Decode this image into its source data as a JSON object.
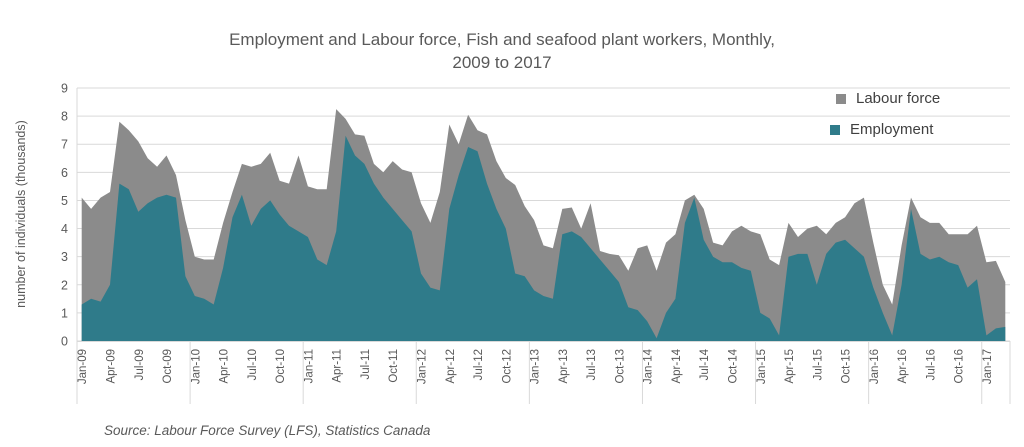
{
  "title": {
    "line1": "Employment and Labour force, Fish and seafood plant workers, Monthly,",
    "line2": "2009 to 2017"
  },
  "legend": {
    "items": [
      {
        "label": "Labour force",
        "color": "#8b8b8b"
      },
      {
        "label": "Employment",
        "color": "#2f7b8a"
      }
    ]
  },
  "y_axis": {
    "title": "number of individuals (thousands)",
    "ticks": [
      0,
      1,
      2,
      3,
      4,
      5,
      6,
      7,
      8,
      9
    ]
  },
  "source": "Source: Labour Force Survey (LFS), Statistics Canada",
  "colors": {
    "grid": "#d9d9d9",
    "axis_text": "#595959",
    "labour_force": "#8b8b8b",
    "employment": "#2f7b8a"
  },
  "chart_data": {
    "type": "area",
    "title": "Employment and Labour force, Fish and seafood plant workers, Monthly, 2009 to 2017",
    "ylabel": "number of individuals (thousands)",
    "ylim": [
      0,
      9
    ],
    "grid": true,
    "legend_position": "top-right",
    "x_tick_every": 3,
    "x": [
      "Jan-09",
      "Feb-09",
      "Mar-09",
      "Apr-09",
      "May-09",
      "Jun-09",
      "Jul-09",
      "Aug-09",
      "Sep-09",
      "Oct-09",
      "Nov-09",
      "Dec-09",
      "Jan-10",
      "Feb-10",
      "Mar-10",
      "Apr-10",
      "May-10",
      "Jun-10",
      "Jul-10",
      "Aug-10",
      "Sep-10",
      "Oct-10",
      "Nov-10",
      "Dec-10",
      "Jan-11",
      "Feb-11",
      "Mar-11",
      "Apr-11",
      "May-11",
      "Jun-11",
      "Jul-11",
      "Aug-11",
      "Sep-11",
      "Oct-11",
      "Nov-11",
      "Dec-11",
      "Jan-12",
      "Feb-12",
      "Mar-12",
      "Apr-12",
      "May-12",
      "Jun-12",
      "Jul-12",
      "Aug-12",
      "Sep-12",
      "Oct-12",
      "Nov-12",
      "Dec-12",
      "Jan-13",
      "Feb-13",
      "Mar-13",
      "Apr-13",
      "May-13",
      "Jun-13",
      "Jul-13",
      "Aug-13",
      "Sep-13",
      "Oct-13",
      "Nov-13",
      "Dec-13",
      "Jan-14",
      "Feb-14",
      "Mar-14",
      "Apr-14",
      "May-14",
      "Jun-14",
      "Jul-14",
      "Aug-14",
      "Sep-14",
      "Oct-14",
      "Nov-14",
      "Dec-14",
      "Jan-15",
      "Feb-15",
      "Mar-15",
      "Apr-15",
      "May-15",
      "Jun-15",
      "Jul-15",
      "Aug-15",
      "Sep-15",
      "Oct-15",
      "Nov-15",
      "Dec-15",
      "Jan-16",
      "Feb-16",
      "Mar-16",
      "Apr-16",
      "May-16",
      "Jun-16",
      "Jul-16",
      "Aug-16",
      "Sep-16",
      "Oct-16",
      "Nov-16",
      "Dec-16",
      "Jan-17",
      "Feb-17",
      "Mar-17"
    ],
    "series": [
      {
        "name": "Labour force",
        "color": "#8b8b8b",
        "values": [
          5.1,
          4.7,
          5.1,
          5.3,
          7.8,
          7.5,
          7.1,
          6.5,
          6.2,
          6.6,
          5.9,
          4.3,
          3.0,
          2.9,
          2.9,
          4.2,
          5.3,
          6.3,
          6.2,
          6.3,
          6.7,
          5.7,
          5.6,
          6.6,
          5.5,
          5.4,
          5.4,
          8.25,
          7.9,
          7.35,
          7.3,
          6.3,
          6.0,
          6.4,
          6.1,
          6.0,
          4.9,
          4.2,
          5.3,
          7.7,
          7.0,
          8.05,
          7.5,
          7.35,
          6.4,
          5.8,
          5.55,
          4.8,
          4.3,
          3.4,
          3.3,
          4.7,
          4.75,
          4.0,
          4.9,
          3.2,
          3.1,
          3.05,
          2.5,
          3.3,
          3.4,
          2.5,
          3.5,
          3.8,
          5.0,
          5.2,
          4.7,
          3.5,
          3.4,
          3.9,
          4.1,
          3.9,
          3.8,
          2.9,
          2.7,
          4.2,
          3.7,
          4.0,
          4.1,
          3.8,
          4.2,
          4.4,
          4.9,
          5.1,
          3.5,
          2.0,
          1.3,
          3.4,
          5.1,
          4.4,
          4.2,
          4.2,
          3.8,
          3.8,
          3.8,
          4.1,
          2.8,
          2.85,
          2.1
        ]
      },
      {
        "name": "Employment",
        "color": "#2f7b8a",
        "values": [
          1.3,
          1.5,
          1.4,
          2.0,
          5.6,
          5.4,
          4.6,
          4.9,
          5.1,
          5.2,
          5.1,
          2.3,
          1.6,
          1.5,
          1.3,
          2.6,
          4.4,
          5.2,
          4.1,
          4.7,
          5.0,
          4.5,
          4.1,
          3.9,
          3.7,
          2.9,
          2.7,
          3.9,
          7.3,
          6.6,
          6.3,
          5.6,
          5.1,
          4.7,
          4.3,
          3.9,
          2.4,
          1.9,
          1.8,
          4.7,
          5.9,
          6.9,
          6.75,
          5.6,
          4.7,
          4.0,
          2.4,
          2.3,
          1.8,
          1.6,
          1.5,
          3.8,
          3.9,
          3.7,
          3.3,
          2.9,
          2.5,
          2.1,
          1.2,
          1.1,
          0.7,
          0.1,
          1.0,
          1.5,
          4.2,
          5.1,
          3.6,
          3.0,
          2.8,
          2.8,
          2.6,
          2.5,
          1.0,
          0.8,
          0.2,
          3.0,
          3.1,
          3.1,
          2.0,
          3.1,
          3.5,
          3.6,
          3.3,
          3.0,
          1.9,
          1.0,
          0.2,
          2.0,
          4.7,
          3.1,
          2.9,
          3.0,
          2.8,
          2.7,
          1.9,
          2.2,
          0.2,
          0.45,
          0.5
        ]
      }
    ]
  }
}
